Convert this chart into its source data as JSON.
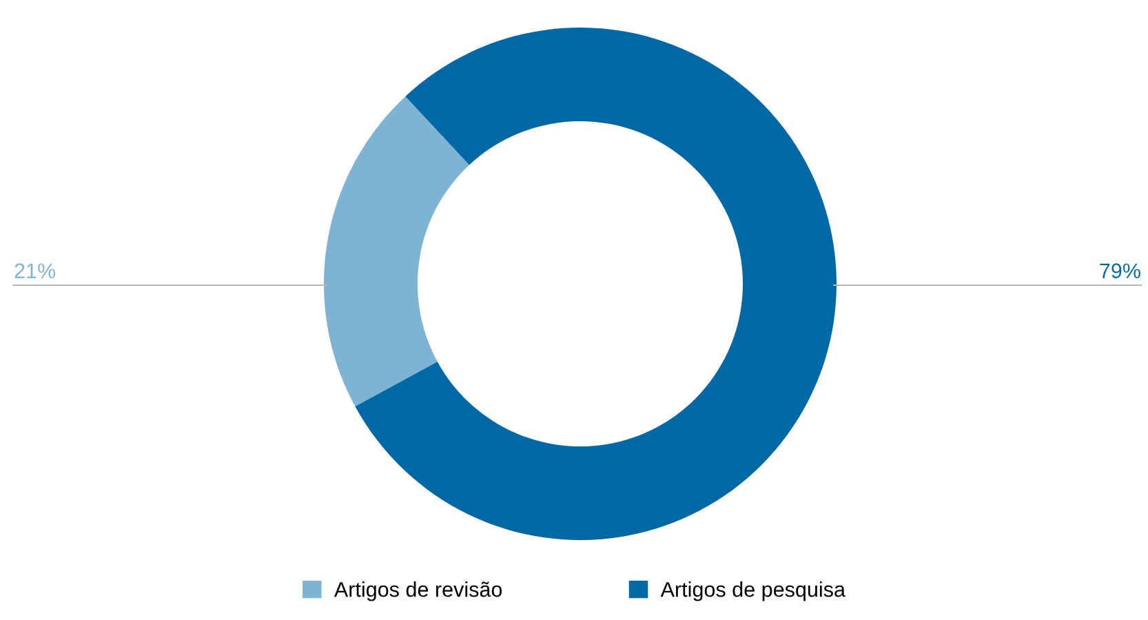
{
  "chart_data": {
    "type": "donut",
    "categories": [
      "Artigos de revisão",
      "Artigos de pesquisa"
    ],
    "values": [
      21,
      79
    ],
    "colors": [
      "#7fb3d3",
      "#0068a5"
    ],
    "value_labels": [
      "21%",
      "79%"
    ],
    "legend": "bottom"
  }
}
